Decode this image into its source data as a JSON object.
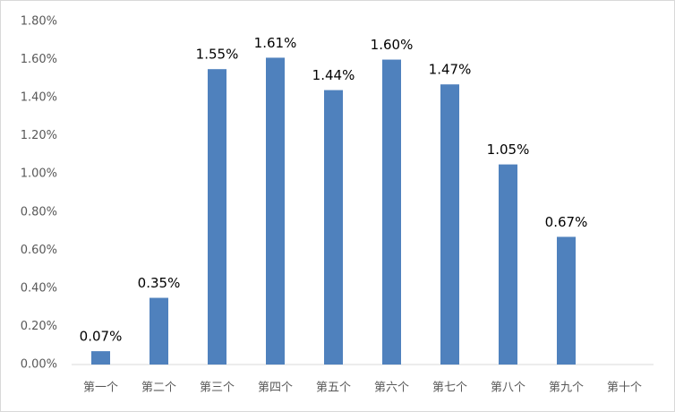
{
  "chart_data": {
    "type": "bar",
    "categories": [
      "第一个",
      "第二个",
      "第三个",
      "第四个",
      "第五个",
      "第六个",
      "第七个",
      "第八个",
      "第九个",
      "第十个"
    ],
    "values": [
      0.07,
      0.35,
      1.55,
      1.61,
      1.44,
      1.6,
      1.47,
      1.05,
      0.67,
      null
    ],
    "value_labels": [
      "0.07%",
      "0.35%",
      "1.55%",
      "1.61%",
      "1.44%",
      "1.60%",
      "1.47%",
      "1.05%",
      "0.67%",
      null
    ],
    "color": "#4f81bd",
    "ylim": [
      0,
      1.8
    ],
    "yticks": [
      {
        "value": 0,
        "label": "0.00%"
      },
      {
        "value": 0.2,
        "label": "0.20%"
      },
      {
        "value": 0.4,
        "label": "0.40%"
      },
      {
        "value": 0.6,
        "label": "0.60%"
      },
      {
        "value": 0.8,
        "label": "0.80%"
      },
      {
        "value": 1.0,
        "label": "1.00%"
      },
      {
        "value": 1.2,
        "label": "1.20%"
      },
      {
        "value": 1.4,
        "label": "1.40%"
      },
      {
        "value": 1.6,
        "label": "1.60%"
      },
      {
        "value": 1.8,
        "label": "1.80%"
      }
    ],
    "grid": false
  }
}
